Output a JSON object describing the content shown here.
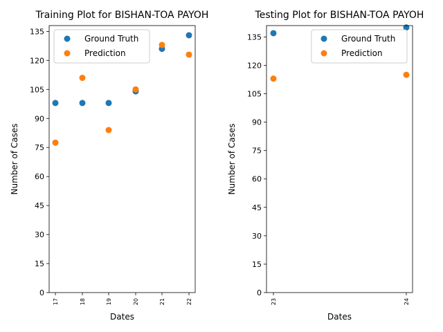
{
  "chart_data": [
    {
      "type": "scatter",
      "title": "Training Plot for BISHAN-TOA PAYOH",
      "xlabel": "Dates",
      "ylabel": "Number of Cases",
      "x": [
        "17",
        "18",
        "19",
        "20",
        "21",
        "22"
      ],
      "series": [
        {
          "name": "Ground Truth",
          "color": "#1f77b4",
          "values": [
            98,
            98,
            98,
            104,
            126,
            133
          ]
        },
        {
          "name": "Prediction",
          "color": "#ff7f0e",
          "values": [
            77.5,
            111,
            84,
            105,
            128,
            123
          ]
        }
      ],
      "ylim": [
        0,
        138
      ],
      "yticks": [
        0,
        15,
        30,
        45,
        60,
        75,
        90,
        105,
        120,
        135
      ],
      "legend": "top-left",
      "grid": false
    },
    {
      "type": "scatter",
      "title": "Testing Plot for BISHAN-TOA PAYOH",
      "xlabel": "Dates",
      "ylabel": "Number of Cases",
      "x": [
        "23",
        "24"
      ],
      "series": [
        {
          "name": "Ground Truth",
          "color": "#1f77b4",
          "values": [
            137,
            140
          ]
        },
        {
          "name": "Prediction",
          "color": "#ff7f0e",
          "values": [
            113,
            115
          ]
        }
      ],
      "ylim": [
        0,
        141
      ],
      "yticks": [
        0,
        15,
        30,
        45,
        60,
        75,
        90,
        105,
        120,
        135
      ],
      "legend": "top-right",
      "grid": false
    }
  ]
}
